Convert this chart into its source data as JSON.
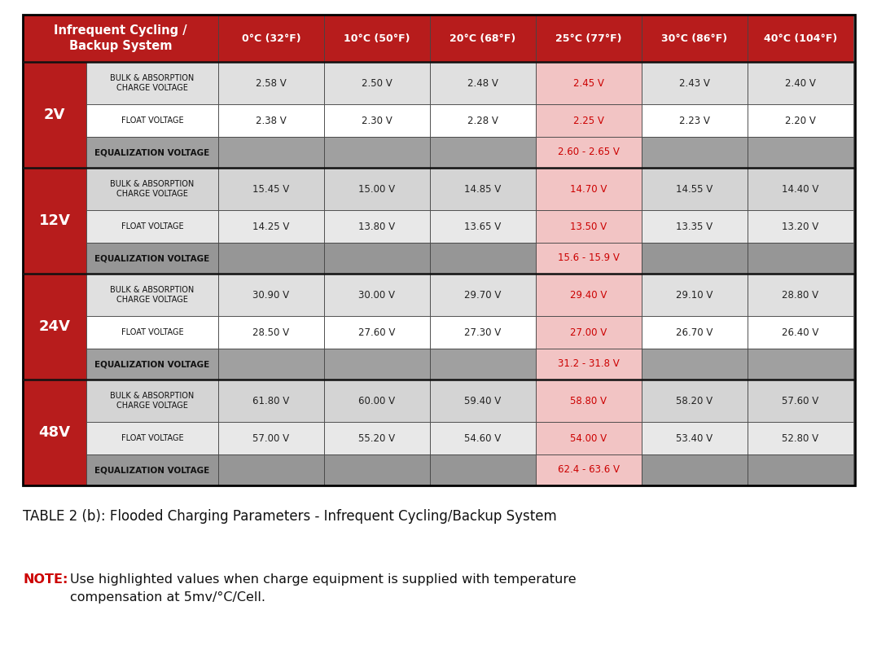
{
  "header_bg": "#b71c1c",
  "header_text_color": "#ffffff",
  "row_label_bg": "#b71c1c",
  "row_label_text_color": "#ffffff",
  "highlight_bg": "#f2c4c4",
  "highlight_text": "#cc0000",
  "normal_text": "#222222",
  "border_color": "#111111",
  "col_headers": [
    "Infrequent Cycling /\nBackup System",
    "0°C (32°F)",
    "10°C (50°F)",
    "20°C (68°F)",
    "25°C (77°F)",
    "30°C (86°F)",
    "40°C (104°F)"
  ],
  "table_caption": "TABLE 2 (b): Flooded Charging Parameters - Infrequent Cycling/Backup System",
  "note_label": "NOTE:",
  "note_text": "Use highlighted values when charge equipment is supplied with temperature\ncompensation at 5mv/°C/Cell.",
  "voltage_sections": [
    {
      "label": "2V",
      "rows": [
        {
          "sub": "BULK & ABSORPTION\nCHARGE VOLTAGE",
          "vals": [
            "2.58 V",
            "2.50 V",
            "2.48 V",
            "2.45 V",
            "2.43 V",
            "2.40 V"
          ],
          "type": "bulk"
        },
        {
          "sub": "FLOAT VOLTAGE",
          "vals": [
            "2.38 V",
            "2.30 V",
            "2.28 V",
            "2.25 V",
            "2.23 V",
            "2.20 V"
          ],
          "type": "float"
        },
        {
          "sub": "EQUALIZATION VOLTAGE",
          "vals": [
            "",
            "",
            "",
            "2.60 - 2.65 V",
            "",
            ""
          ],
          "type": "eq"
        }
      ]
    },
    {
      "label": "12V",
      "rows": [
        {
          "sub": "BULK & ABSORPTION\nCHARGE VOLTAGE",
          "vals": [
            "15.45 V",
            "15.00 V",
            "14.85 V",
            "14.70 V",
            "14.55 V",
            "14.40 V"
          ],
          "type": "bulk"
        },
        {
          "sub": "FLOAT VOLTAGE",
          "vals": [
            "14.25 V",
            "13.80 V",
            "13.65 V",
            "13.50 V",
            "13.35 V",
            "13.20 V"
          ],
          "type": "float"
        },
        {
          "sub": "EQUALIZATION VOLTAGE",
          "vals": [
            "",
            "",
            "",
            "15.6 - 15.9 V",
            "",
            ""
          ],
          "type": "eq"
        }
      ]
    },
    {
      "label": "24V",
      "rows": [
        {
          "sub": "BULK & ABSORPTION\nCHARGE VOLTAGE",
          "vals": [
            "30.90 V",
            "30.00 V",
            "29.70 V",
            "29.40 V",
            "29.10 V",
            "28.80 V"
          ],
          "type": "bulk"
        },
        {
          "sub": "FLOAT VOLTAGE",
          "vals": [
            "28.50 V",
            "27.60 V",
            "27.30 V",
            "27.00 V",
            "26.70 V",
            "26.40 V"
          ],
          "type": "float"
        },
        {
          "sub": "EQUALIZATION VOLTAGE",
          "vals": [
            "",
            "",
            "",
            "31.2 - 31.8 V",
            "",
            ""
          ],
          "type": "eq"
        }
      ]
    },
    {
      "label": "48V",
      "rows": [
        {
          "sub": "BULK & ABSORPTION\nCHARGE VOLTAGE",
          "vals": [
            "61.80 V",
            "60.00 V",
            "59.40 V",
            "58.80 V",
            "58.20 V",
            "57.60 V"
          ],
          "type": "bulk"
        },
        {
          "sub": "FLOAT VOLTAGE",
          "vals": [
            "57.00 V",
            "55.20 V",
            "54.60 V",
            "54.00 V",
            "53.40 V",
            "52.80 V"
          ],
          "type": "float"
        },
        {
          "sub": "EQUALIZATION VOLTAGE",
          "vals": [
            "",
            "",
            "",
            "62.4 - 63.6 V",
            "",
            ""
          ],
          "type": "eq"
        }
      ]
    }
  ]
}
